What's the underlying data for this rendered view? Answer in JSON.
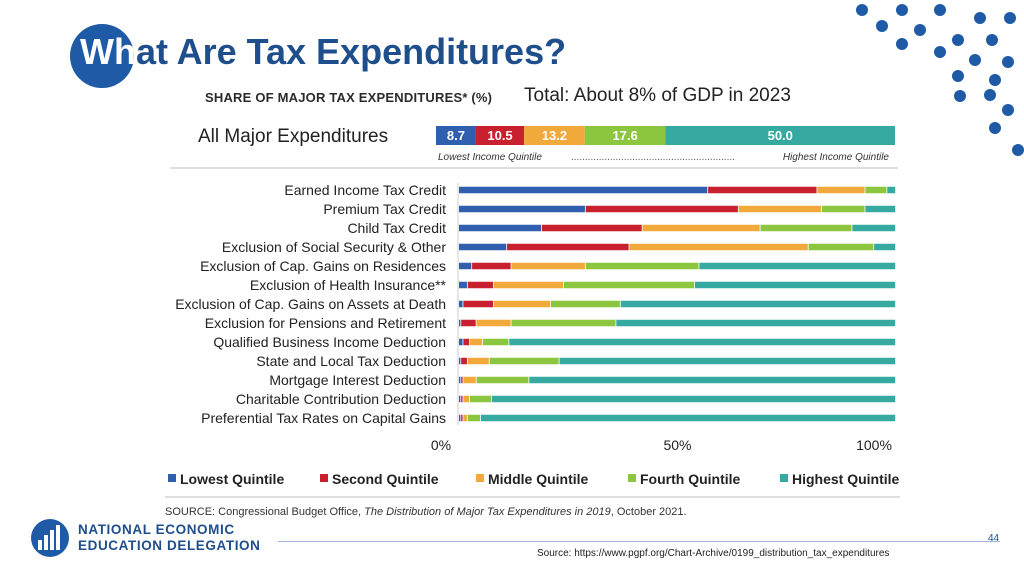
{
  "slide": {
    "title_highlight": "Wh",
    "title_rest": "at Are Tax Expenditures?",
    "total_text": "Total: About 8% of GDP in 2023",
    "page_number": "44",
    "source_url": "Source: https://www.pgpf.org/Chart-Archive/0199_distribution_tax_expenditures",
    "org_line1": "NATIONAL ECONOMIC",
    "org_line2": "EDUCATION DELEGATION"
  },
  "chart_data": {
    "type": "bar",
    "orientation": "horizontal",
    "stacked": true,
    "normalized": true,
    "title": "SHARE OF MAJOR TAX EXPENDITURES* (%)",
    "series_names": [
      "Lowest Quintile",
      "Second Quintile",
      "Middle Quintile",
      "Fourth Quintile",
      "Highest Quintile"
    ],
    "colors": [
      "#2f5fae",
      "#c8202f",
      "#f2a93b",
      "#8cc63f",
      "#36a9a1"
    ],
    "summary": {
      "label": "All Major Expenditures",
      "values": [
        8.7,
        10.5,
        13.2,
        17.6,
        50.0
      ],
      "value_labels": [
        "8.7",
        "10.5",
        "13.2",
        "17.6",
        "50.0"
      ],
      "left_caption": "Lowest Income Quintile",
      "dots": "...........................................................",
      "right_caption": "Highest Income Quintile"
    },
    "categories": [
      "Earned Income Tax Credit",
      "Premium Tax Credit",
      "Child Tax Credit",
      "Exclusion of Social Security & Other",
      "Exclusion of Cap. Gains on Residences",
      "Exclusion of Health Insurance**",
      "Exclusion of Cap. Gains on Assets at Death",
      "Exclusion for Pensions and Retirement",
      "Qualified Business Income Deduction",
      "State and Local Tax Deduction",
      "Mortgage Interest Deduction",
      "Charitable Contribution Deduction",
      "Preferential Tax Rates on Capital Gains"
    ],
    "series": [
      {
        "name": "Lowest Quintile",
        "values": [
          57,
          29,
          19,
          11,
          3,
          2,
          1,
          0.5,
          1,
          0.5,
          0.5,
          0.5,
          0.5
        ]
      },
      {
        "name": "Second Quintile",
        "values": [
          25,
          35,
          23,
          28,
          9,
          6,
          7,
          3.5,
          1.5,
          1.5,
          0.5,
          0.5,
          0.5
        ]
      },
      {
        "name": "Middle Quintile",
        "values": [
          11,
          19,
          27,
          41,
          17,
          16,
          13,
          8,
          3,
          5,
          3,
          1.5,
          1
        ]
      },
      {
        "name": "Fourth Quintile",
        "values": [
          5,
          10,
          21,
          15,
          26,
          30,
          16,
          24,
          6,
          16,
          12,
          5,
          3
        ]
      },
      {
        "name": "Highest Quintile",
        "values": [
          2,
          7,
          10,
          5,
          45,
          46,
          63,
          64,
          88.5,
          77,
          83.5,
          92.5,
          95
        ]
      }
    ],
    "x_ticks": [
      "0%",
      "50%",
      "100%"
    ],
    "xlim": [
      0,
      100
    ],
    "source_prefix": "SOURCE: Congressional Budget Office, ",
    "source_title": "The Distribution of Major Tax Expenditures in 2019",
    "source_suffix": ", October 2021."
  }
}
